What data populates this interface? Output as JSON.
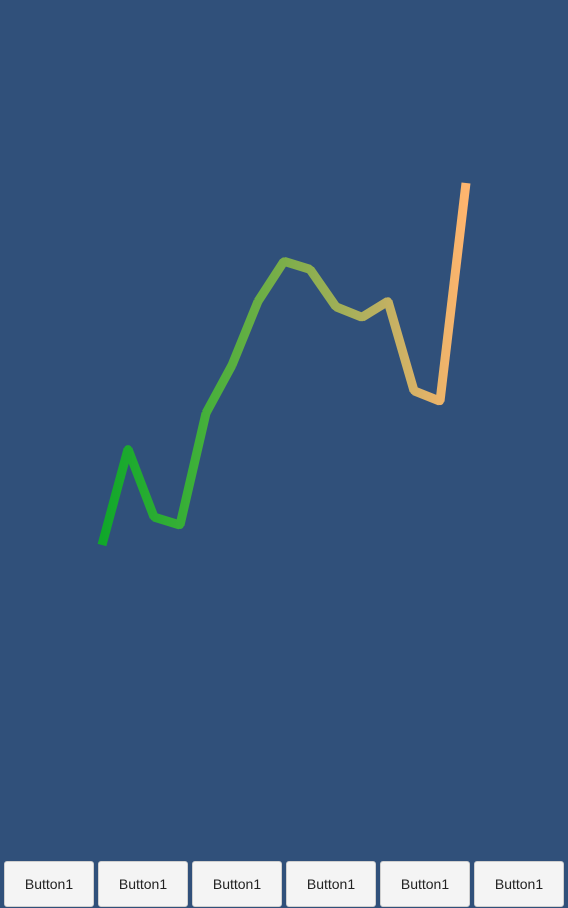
{
  "colors": {
    "background": "#30507a",
    "line_start": "#10a82a",
    "line_mid": "#7cae4a",
    "line_end": "#ffb56e",
    "button_face": "#f4f4f4",
    "button_text": "#222222"
  },
  "line_chart": {
    "type": "line",
    "values": [
      0,
      1.2,
      0.35,
      0.25,
      1.65,
      2.25,
      3.05,
      3.55,
      3.45,
      2.98,
      2.85,
      3.05,
      1.93,
      1.8,
      4.53
    ],
    "ylim": [
      0,
      5
    ],
    "grid": false,
    "gradient_stops": [
      "#10a82a",
      "#3cb038",
      "#7cae4a",
      "#b8b060",
      "#ffb56e"
    ]
  },
  "toolbar": {
    "buttons": [
      {
        "label": "Button1"
      },
      {
        "label": "Button1"
      },
      {
        "label": "Button1"
      },
      {
        "label": "Button1"
      },
      {
        "label": "Button1"
      },
      {
        "label": "Button1"
      }
    ]
  }
}
